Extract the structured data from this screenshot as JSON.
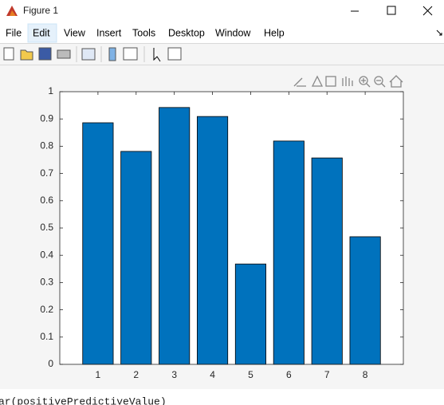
{
  "window": {
    "title": "Figure 1",
    "menu": [
      "File",
      "Edit",
      "View",
      "Insert",
      "Tools",
      "Desktop",
      "Window",
      "Help"
    ]
  },
  "chart_data": {
    "type": "bar",
    "x": [
      1,
      2,
      3,
      4,
      5,
      6,
      7,
      8
    ],
    "values": [
      0.886,
      0.781,
      0.942,
      0.909,
      0.368,
      0.819,
      0.757,
      0.468
    ],
    "color": "#0072bd",
    "edge_color": "#000000",
    "xlim": [
      0,
      9
    ],
    "xticks": [
      1,
      2,
      3,
      4,
      5,
      6,
      7,
      8
    ],
    "ylim": [
      0,
      1
    ],
    "yticks": [
      0,
      0.1,
      0.2,
      0.3,
      0.4,
      0.5,
      0.6,
      0.7,
      0.8,
      0.9,
      1
    ]
  },
  "background_text": "ar(positivePredictiveValue)"
}
